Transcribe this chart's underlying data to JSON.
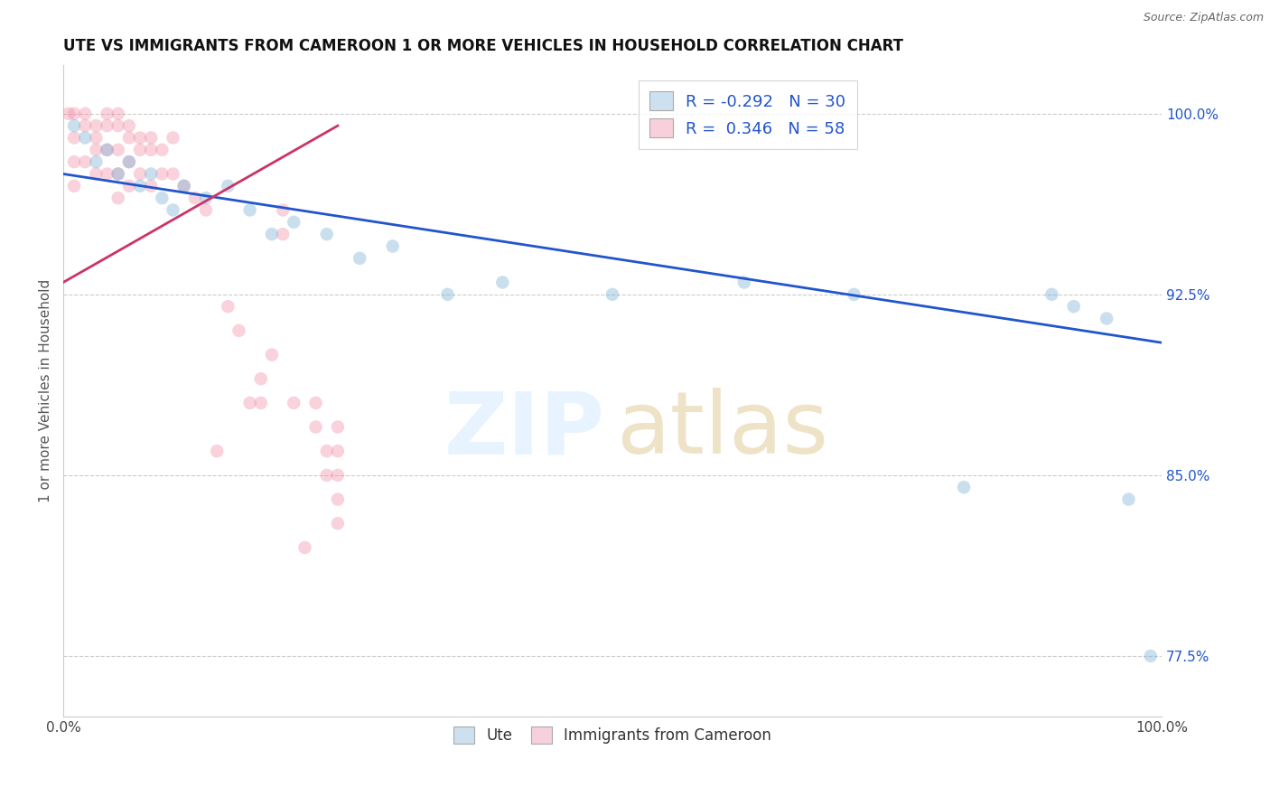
{
  "title": "UTE VS IMMIGRANTS FROM CAMEROON 1 OR MORE VEHICLES IN HOUSEHOLD CORRELATION CHART",
  "source": "Source: ZipAtlas.com",
  "ylabel": "1 or more Vehicles in Household",
  "xlim": [
    0,
    100
  ],
  "ylim": [
    75,
    102
  ],
  "ytick_labels": [
    "77.5%",
    "85.0%",
    "92.5%",
    "100.0%"
  ],
  "ytick_values": [
    77.5,
    85.0,
    92.5,
    100.0
  ],
  "legend_entries": [
    {
      "color": "#aac4e0",
      "R": "-0.292",
      "N": "30",
      "label": "Ute"
    },
    {
      "color": "#f5b8c8",
      "R": " 0.346",
      "N": "58",
      "label": "Immigrants from Cameroon"
    }
  ],
  "blue_scatter_x": [
    1,
    2,
    3,
    4,
    5,
    6,
    7,
    8,
    9,
    10,
    11,
    13,
    15,
    17,
    19,
    21,
    24,
    27,
    30,
    35,
    40,
    50,
    62,
    72,
    82,
    90,
    92,
    95,
    97,
    99
  ],
  "blue_scatter_y": [
    99.5,
    99,
    98,
    98.5,
    97.5,
    98,
    97,
    97.5,
    96.5,
    96,
    97,
    96.5,
    97,
    96,
    95,
    95.5,
    95,
    94,
    94.5,
    92.5,
    93,
    92.5,
    93,
    92.5,
    84.5,
    92.5,
    92,
    91.5,
    84,
    77.5
  ],
  "pink_scatter_x": [
    0.5,
    1,
    1,
    1,
    1,
    2,
    2,
    2,
    3,
    3,
    3,
    3,
    4,
    4,
    4,
    4,
    5,
    5,
    5,
    5,
    5,
    6,
    6,
    6,
    6,
    7,
    7,
    7,
    8,
    8,
    8,
    9,
    9,
    10,
    10,
    11,
    12,
    13,
    14,
    15,
    16,
    17,
    18,
    18,
    19,
    20,
    20,
    21,
    22,
    23,
    23,
    24,
    24,
    25,
    25,
    25,
    25,
    25
  ],
  "pink_scatter_y": [
    100,
    100,
    99,
    98,
    97,
    100,
    99.5,
    98,
    99.5,
    99,
    98.5,
    97.5,
    100,
    99.5,
    98.5,
    97.5,
    100,
    99.5,
    98.5,
    97.5,
    96.5,
    99.5,
    99,
    98,
    97,
    99,
    98.5,
    97.5,
    99,
    98.5,
    97,
    98.5,
    97.5,
    99,
    97.5,
    97,
    96.5,
    96,
    86,
    92,
    91,
    88,
    89,
    88,
    90,
    96,
    95,
    88,
    82,
    88,
    87,
    86,
    85,
    87,
    86,
    85,
    84,
    83
  ],
  "blue_line_x": [
    0,
    100
  ],
  "blue_line_y": [
    97.5,
    90.5
  ],
  "pink_line_x": [
    0,
    25
  ],
  "pink_line_y": [
    93.0,
    99.5
  ],
  "scatter_alpha": 0.4,
  "scatter_size": 110,
  "blue_color": "#7bafd4",
  "pink_color": "#f090a8",
  "blue_line_color": "#2255cc",
  "pink_line_color": "#cc3366",
  "title_fontsize": 12,
  "background_color": "#ffffff",
  "grid_color": "#cccccc",
  "right_label_color": "#2255cc"
}
